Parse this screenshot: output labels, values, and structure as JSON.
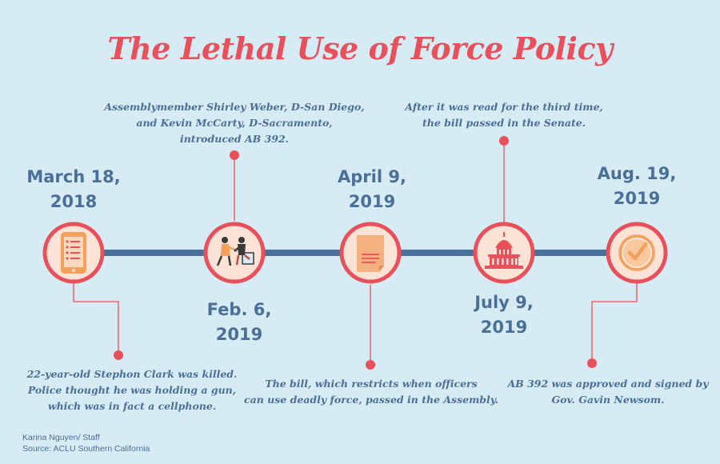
{
  "title": "The Lethal Use of Force Policy",
  "events": [
    {
      "date_line1": "March 18,",
      "date_line2": "2018",
      "icon": "cellphone-icon",
      "desc": [
        "22-year-old Stephon Clark was killed.",
        "Police thought he was holding a gun,",
        "which was in fact a cellphone."
      ]
    },
    {
      "date_line1": "Feb. 6,",
      "date_line2": "2019",
      "icon": "meeting-people-icon",
      "desc": [
        "Assemblymember Shirley Weber, D-San Diego,",
        "and Kevin McCarty, D-Sacramento,",
        "introduced AB 392."
      ]
    },
    {
      "date_line1": "April 9,",
      "date_line2": "2019",
      "icon": "document-icon",
      "desc": [
        "The bill, which restricts when officers",
        "can use deadly force, passed in the Assembly."
      ]
    },
    {
      "date_line1": "July 9,",
      "date_line2": "2019",
      "icon": "capitol-building-icon",
      "desc": [
        "After it was read for the third time,",
        "the bill passed in the Senate."
      ]
    },
    {
      "date_line1": "Aug. 19,",
      "date_line2": "2019",
      "icon": "checkmark-icon",
      "desc": [
        "AB 392 was approved and signed by",
        "Gov. Gavin Newsom."
      ]
    }
  ],
  "credit": {
    "author": "Karina Nguyen/ Staff",
    "source": "Source: ACLU Southern California"
  },
  "colors": {
    "background": "#d6ebf3",
    "accent": "#e8505b",
    "text": "#4a6f98",
    "timeline": "#4a6f98",
    "circle_fill": "#fde3d5"
  }
}
